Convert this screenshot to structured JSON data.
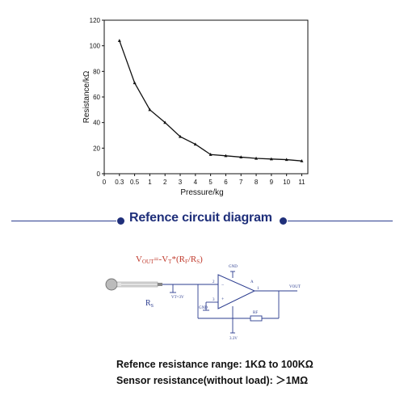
{
  "chart_data": {
    "type": "line",
    "xlabel": "Pressure/kg",
    "ylabel": "Resistance/kΩ",
    "categories": [
      "0",
      "0.3",
      "0.5",
      "1",
      "2",
      "3",
      "4",
      "5",
      "6",
      "7",
      "8",
      "9",
      "10",
      "11"
    ],
    "yticks": [
      "0",
      "20",
      "40",
      "60",
      "80",
      "100",
      "120"
    ],
    "ylim": [
      0,
      120
    ],
    "series": [
      {
        "x": [
          "0.3",
          "0.5",
          "1",
          "2",
          "3",
          "4",
          "5",
          "6",
          "7",
          "8",
          "9",
          "10",
          "11"
        ],
        "values": [
          104,
          71,
          50,
          40,
          29,
          23,
          15,
          14,
          13,
          12,
          11.5,
          11,
          10
        ]
      }
    ],
    "grid": false,
    "line_color": "#111111"
  },
  "section": {
    "title": "Refence circuit diagram",
    "accent_color": "#1f2f7a"
  },
  "circuit": {
    "formula": "VOUT=-VT*(RF/RS)",
    "sensor_label": "RS",
    "gnd_top": "GND",
    "gnd_left": "GND",
    "vt_label": "VT=3V",
    "vout_label": "VOUT",
    "rf_label": "RF",
    "supply_label": "3.3V",
    "amp_label": "A",
    "pin_2": "2",
    "pin_3": "3",
    "pin_1": "1"
  },
  "specs": {
    "line1": "Refence resistance range: 1KΩ to 100KΩ",
    "line2": "Sensor resistance(without load): ＞1MΩ"
  }
}
